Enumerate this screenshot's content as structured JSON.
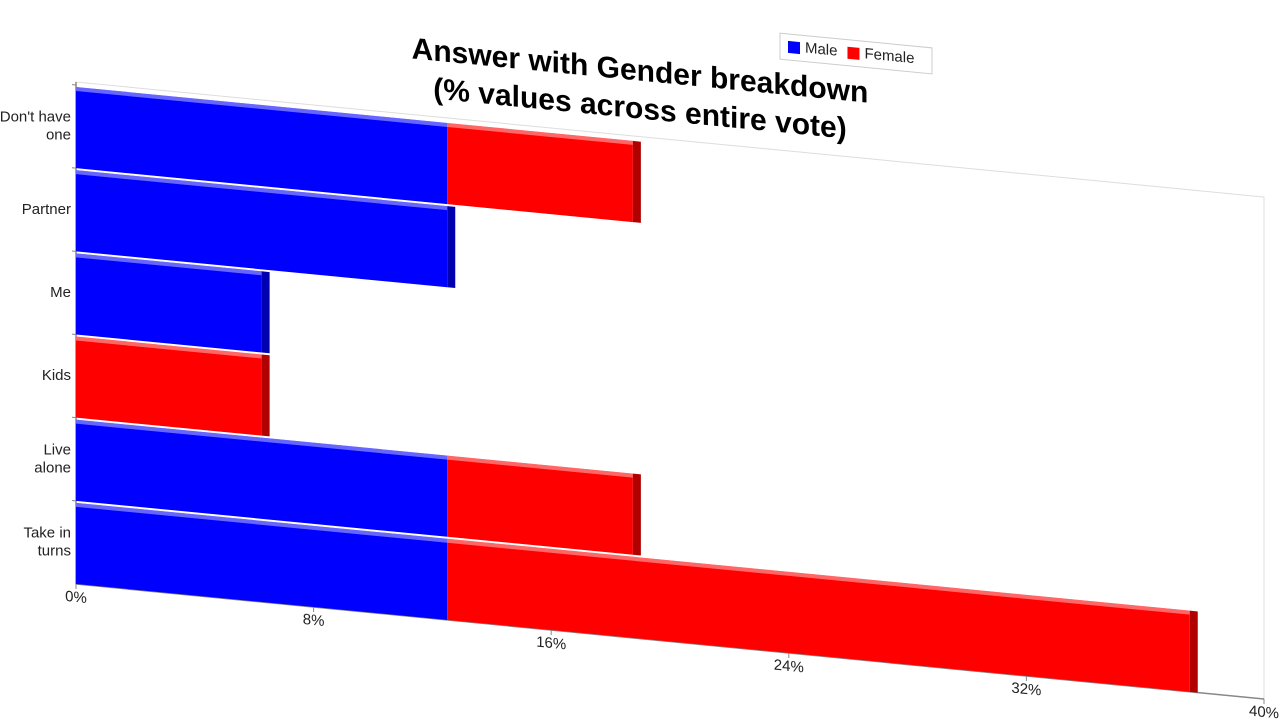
{
  "chart_data": {
    "type": "bar",
    "stacked": true,
    "orientation": "horizontal",
    "title": "Answer with Gender breakdown",
    "subtitle": "(% values across entire vote)",
    "categories": [
      "Don't have one",
      "Partner",
      "Me",
      "Kids",
      "Live alone",
      "Take in turns"
    ],
    "series": [
      {
        "name": "Male",
        "color": "#0000ff",
        "values": [
          12.5,
          12.5,
          6.25,
          0,
          12.5,
          12.5
        ]
      },
      {
        "name": "Female",
        "color": "#ff0000",
        "values": [
          6.25,
          0,
          0,
          6.25,
          6.25,
          25
        ]
      }
    ],
    "xlim": [
      0,
      40
    ],
    "xticks": [
      {
        "value": 0,
        "label": "0%"
      },
      {
        "value": 8,
        "label": "8%"
      },
      {
        "value": 16,
        "label": "16%"
      },
      {
        "value": 24,
        "label": "24%"
      },
      {
        "value": 32,
        "label": "32%"
      },
      {
        "value": 40,
        "label": "40%"
      }
    ],
    "legend": "top-right"
  }
}
